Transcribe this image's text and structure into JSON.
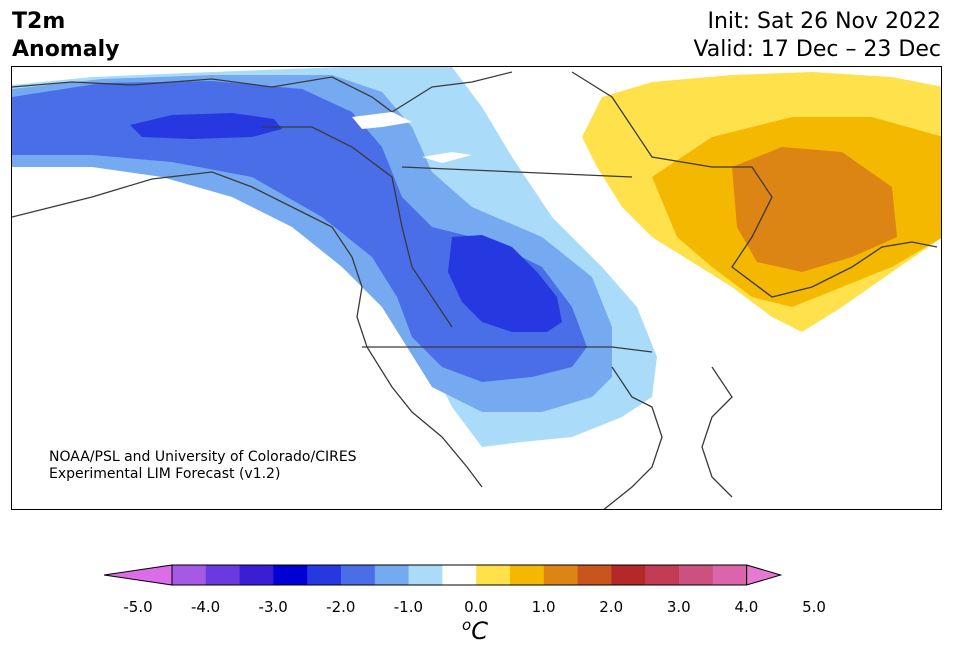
{
  "header": {
    "title_line1": "T2m",
    "title_line2": "Anomaly",
    "init": "Init: Sat 26 Nov 2022",
    "valid": "Valid: 17 Dec – 23 Dec"
  },
  "credit": {
    "line1": "NOAA/PSL and University of Colorado/CIRES",
    "line2": "Experimental LIM Forecast (v1.2)"
  },
  "colorbar": {
    "colors": [
      "#db6ee8",
      "#a55ae6",
      "#6a3ae0",
      "#3a1ed6",
      "#0000d2",
      "#2638df",
      "#4a6ee8",
      "#76aaf0",
      "#aadcfa",
      "#ffffff",
      "#ffe14b",
      "#f5b800",
      "#dc8514",
      "#c8551e",
      "#b42828",
      "#c23c55",
      "#cc5080",
      "#dc64aa",
      "#e878d2"
    ],
    "ticks": [
      "-5.0",
      "-4.0",
      "-3.0",
      "-2.0",
      "-1.0",
      "0.0",
      "1.0",
      "2.0",
      "3.0",
      "4.0",
      "5.0"
    ],
    "unit_base": "C",
    "unit_sup": "o"
  },
  "map": {
    "region": "North America",
    "coastline_color": "#3a3a3a",
    "anomaly_colors": {
      "light_blue": "#aadcfa",
      "mid_blue": "#76aaf0",
      "blue": "#4a6ee8",
      "deep_blue": "#2638df",
      "yellow": "#ffe14b",
      "gold": "#f5b800",
      "orange": "#dc8514"
    }
  }
}
